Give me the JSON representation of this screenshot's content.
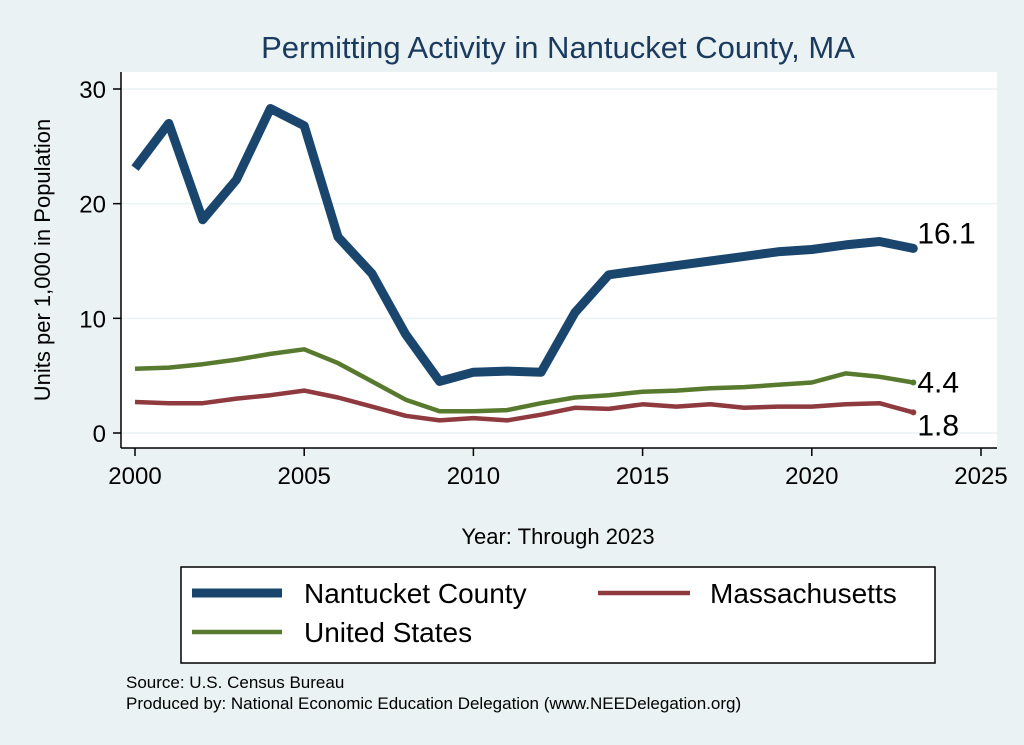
{
  "chart_data": {
    "type": "line",
    "title": "Permitting Activity in Nantucket County, MA",
    "xlabel": "Year: Through 2023",
    "ylabel": "Units per 1,000 in Population",
    "xlim": [
      2000,
      2025
    ],
    "ylim": [
      0,
      30
    ],
    "x_ticks": [
      2000,
      2005,
      2010,
      2015,
      2020,
      2025
    ],
    "y_ticks": [
      0,
      10,
      20,
      30
    ],
    "grid": true,
    "legend_position": "bottom",
    "x": [
      2000,
      2001,
      2002,
      2003,
      2004,
      2005,
      2006,
      2007,
      2008,
      2009,
      2010,
      2011,
      2012,
      2013,
      2014,
      2015,
      2016,
      2017,
      2018,
      2019,
      2020,
      2021,
      2022,
      2023
    ],
    "series": [
      {
        "name": "Nantucket County",
        "color": "#1A466E",
        "values": [
          23.1,
          27.0,
          18.6,
          22.1,
          28.3,
          26.8,
          17.1,
          13.9,
          8.6,
          4.5,
          5.3,
          5.4,
          5.3,
          10.5,
          13.8,
          14.2,
          14.6,
          15.0,
          15.4,
          15.8,
          16.0,
          16.4,
          16.7,
          16.1
        ],
        "end_label": "16.1"
      },
      {
        "name": "Massachusetts",
        "color": "#8E3A3E",
        "values": [
          2.7,
          2.6,
          2.6,
          3.0,
          3.3,
          3.7,
          3.1,
          2.3,
          1.5,
          1.1,
          1.3,
          1.1,
          1.6,
          2.2,
          2.1,
          2.5,
          2.3,
          2.5,
          2.2,
          2.3,
          2.3,
          2.5,
          2.6,
          1.8
        ],
        "end_label": "1.8"
      },
      {
        "name": "United States",
        "color": "#577A2E",
        "values": [
          5.6,
          5.7,
          6.0,
          6.4,
          6.9,
          7.3,
          6.1,
          4.5,
          2.9,
          1.9,
          1.9,
          2.0,
          2.6,
          3.1,
          3.3,
          3.6,
          3.7,
          3.9,
          4.0,
          4.2,
          4.4,
          5.2,
          4.9,
          4.4
        ],
        "end_label": "4.4"
      }
    ]
  },
  "footer": {
    "source": "Source: U.S. Census Bureau",
    "produced_by": "Produced by: National Economic Education Delegation (www.NEEDelegation.org)"
  }
}
